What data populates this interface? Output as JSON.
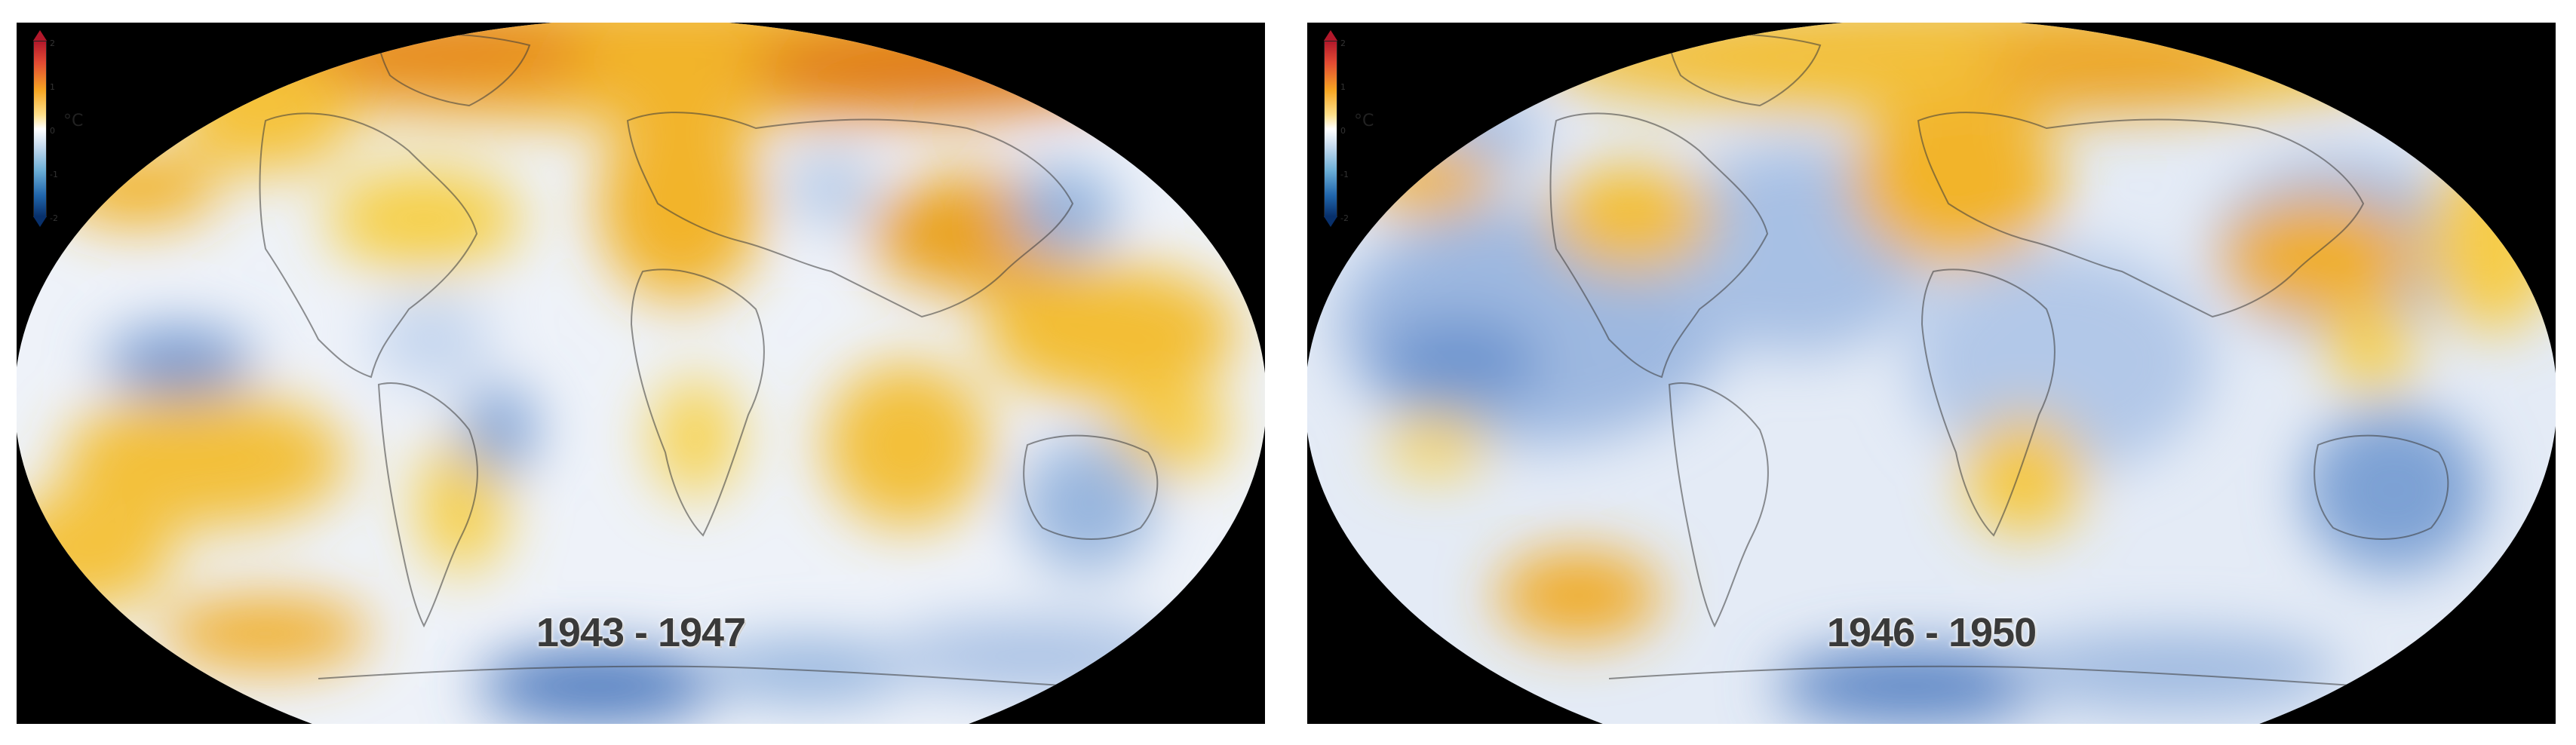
{
  "legend": {
    "ticks": [
      "2",
      "1",
      "0",
      "-1",
      "-2"
    ],
    "unit": "°C",
    "colors": {
      "max": "#b2182b",
      "warm": "#f6a623",
      "neutral": "#ffffff",
      "cool": "#6baed6",
      "min": "#08306b"
    }
  },
  "panels": [
    {
      "period": "1943 - 1947"
    },
    {
      "period": "1946 - 1950"
    }
  ]
}
